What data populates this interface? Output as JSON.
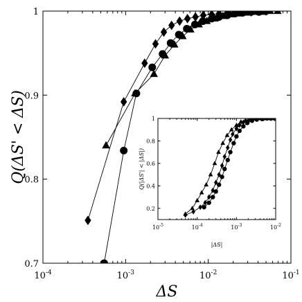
{
  "chart_data": [
    {
      "type": "line",
      "xlabel": "ΔS",
      "ylabel": "Q(ΔS' < ΔS)",
      "xscale": "log",
      "xlim": [
        0.0001,
        0.1
      ],
      "ylim": [
        0.7,
        1.0
      ],
      "xticks": [
        0.0001,
        0.001,
        0.01,
        0.1
      ],
      "xtick_labels": [
        "10",
        "10",
        "10",
        "10"
      ],
      "xtick_exponents": [
        "-4",
        "-3",
        "-2",
        "-1"
      ],
      "yticks": [
        0.7,
        0.8,
        0.9,
        1.0
      ],
      "ytick_labels": [
        "0.7",
        "0.8",
        "0.9",
        "1"
      ],
      "grid": false,
      "series": [
        {
          "marker": "diamond",
          "x": [
            0.00035,
            0.00095,
            0.0017,
            0.0023,
            0.0029,
            0.0036,
            0.0045,
            0.0056,
            0.007,
            0.0087,
            0.011,
            0.0135,
            0.017,
            0.021,
            0.026,
            0.033,
            0.041,
            0.05
          ],
          "y": [
            0.751,
            0.892,
            0.938,
            0.961,
            0.975,
            0.983,
            0.988,
            0.991,
            0.993,
            0.995,
            0.996,
            0.997,
            0.998,
            0.998,
            0.999,
            0.999,
            1.0,
            1.0
          ]
        },
        {
          "marker": "circle",
          "x": [
            0.00055,
            0.00095,
            0.00135,
            0.0021,
            0.0028,
            0.0035,
            0.0044,
            0.0055,
            0.0069,
            0.0086,
            0.011,
            0.0135,
            0.017,
            0.021,
            0.026,
            0.033,
            0.041,
            0.05
          ],
          "y": [
            0.7,
            0.834,
            0.902,
            0.933,
            0.949,
            0.962,
            0.972,
            0.979,
            0.984,
            0.988,
            0.991,
            0.993,
            0.995,
            0.997,
            0.998,
            0.999,
            0.999,
            1.0
          ]
        },
        {
          "marker": "triangle",
          "x": [
            0.00058,
            0.0013,
            0.0022,
            0.003,
            0.0039,
            0.0049,
            0.0061,
            0.0077,
            0.0096,
            0.012,
            0.015,
            0.0185,
            0.023,
            0.029,
            0.036,
            0.045,
            0.056,
            0.069
          ],
          "y": [
            0.84,
            0.902,
            0.925,
            0.947,
            0.96,
            0.97,
            0.978,
            0.984,
            0.988,
            0.991,
            0.994,
            0.996,
            0.997,
            0.998,
            0.999,
            0.999,
            1.0,
            1.0
          ]
        }
      ]
    },
    {
      "type": "line",
      "xlabel": "|ΔS|",
      "ylabel": "Q(|ΔS'| < |ΔS|)",
      "xscale": "log",
      "xlim": [
        1e-05,
        0.01
      ],
      "ylim": [
        0.1,
        1.0
      ],
      "xticks": [
        1e-05,
        0.0001,
        0.001,
        0.01
      ],
      "xtick_labels": [
        "10",
        "10",
        "10",
        "10"
      ],
      "xtick_exponents": [
        "-5",
        "-4",
        "-3",
        "-2"
      ],
      "yticks": [
        0.2,
        0.4,
        0.6,
        0.8,
        1.0
      ],
      "ytick_labels": [
        "0.2",
        "0.4",
        "0.6",
        "0.8",
        "1"
      ],
      "grid": false,
      "series": [
        {
          "marker": "triangle",
          "x": [
            5e-05,
            7.5e-05,
            0.0001,
            0.00013,
            0.00017,
            0.00022,
            0.00028,
            0.00035,
            0.00045,
            0.00058,
            0.00075,
            0.001,
            0.0013,
            0.0017,
            0.0023,
            0.003,
            0.004,
            0.0055,
            0.0075,
            0.0095
          ],
          "y": [
            0.15,
            0.2,
            0.27,
            0.34,
            0.41,
            0.5,
            0.6,
            0.7,
            0.78,
            0.85,
            0.9,
            0.94,
            0.97,
            0.985,
            0.993,
            0.997,
            1.0,
            1.0,
            1.0,
            1.0
          ]
        },
        {
          "marker": "diamond",
          "x": [
            5e-05,
            8e-05,
            0.00012,
            0.00016,
            0.0002,
            0.00025,
            0.0003,
            0.00036,
            0.00043,
            0.0005,
            0.0006,
            0.0007,
            0.0008,
            0.001,
            0.0012,
            0.0015,
            0.002,
            0.0026,
            0.0035,
            0.005,
            0.0075,
            0.0095
          ],
          "y": [
            0.14,
            0.17,
            0.21,
            0.25,
            0.3,
            0.36,
            0.43,
            0.5,
            0.58,
            0.66,
            0.74,
            0.81,
            0.86,
            0.91,
            0.94,
            0.965,
            0.98,
            0.99,
            0.995,
            1.0,
            1.0,
            1.0
          ]
        },
        {
          "marker": "circle",
          "x": [
            0.00015,
            0.0002,
            0.00025,
            0.0003,
            0.00036,
            0.00043,
            0.0005,
            0.0006,
            0.0007,
            0.00085,
            0.001,
            0.0012,
            0.0015,
            0.0019,
            0.0025,
            0.0033,
            0.0045,
            0.006,
            0.0075,
            0.0095
          ],
          "y": [
            0.21,
            0.25,
            0.3,
            0.35,
            0.41,
            0.48,
            0.55,
            0.63,
            0.7,
            0.78,
            0.84,
            0.89,
            0.93,
            0.96,
            0.98,
            0.99,
            0.995,
            1.0,
            1.0,
            1.0
          ]
        }
      ]
    }
  ]
}
